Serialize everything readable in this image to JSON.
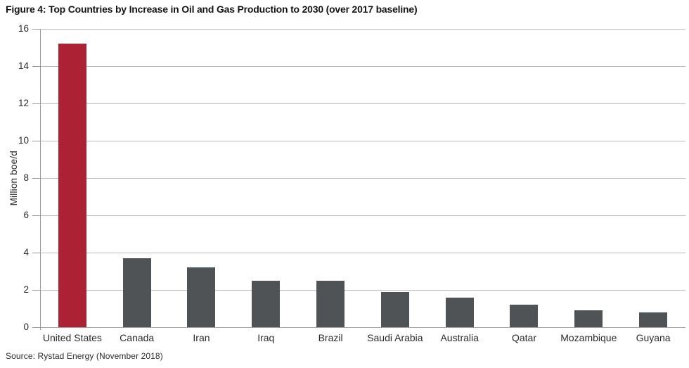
{
  "title": "Figure 4: Top Countries by Increase in Oil and Gas Production to 2030 (over 2017 baseline)",
  "source": "Source: Rystad Energy (November 2018)",
  "chart_data": {
    "type": "bar",
    "title": "Top Countries by Increase in Oil and Gas Production to 2030 (over 2017 baseline)",
    "categories": [
      "United States",
      "Canada",
      "Iran",
      "Iraq",
      "Brazil",
      "Saudi Arabia",
      "Australia",
      "Qatar",
      "Mozambique",
      "Guyana"
    ],
    "values": [
      15.2,
      3.7,
      3.2,
      2.5,
      2.5,
      1.9,
      1.6,
      1.2,
      0.9,
      0.8
    ],
    "xlabel": "",
    "ylabel": "Million boe/d",
    "ylim": [
      0,
      16
    ],
    "yticks": [
      0,
      2,
      4,
      6,
      8,
      10,
      12,
      14,
      16
    ],
    "grid": "horizontal",
    "legend": "none",
    "highlight_index": 0,
    "colors": {
      "highlight_bar": "#AC2234",
      "default_bar": "#4F5356",
      "gridline": "#b9bbbd",
      "axis": "#97999c",
      "text": "#2b2b2b"
    }
  }
}
